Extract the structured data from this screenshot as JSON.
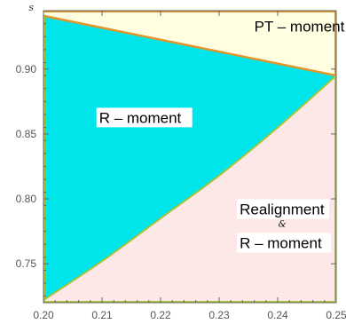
{
  "chart_data": {
    "type": "area",
    "ylabel": "s",
    "xlabel": "",
    "xlim": [
      0.2,
      0.25
    ],
    "ylim": [
      0.72,
      0.945
    ],
    "x_ticks": [
      "0.20",
      "0.21",
      "0.22",
      "0.23",
      "0.24",
      "0.25"
    ],
    "y_ticks": [
      "0.75",
      "0.80",
      "0.85",
      "0.90"
    ],
    "colors": {
      "r_region": "#00e5ea",
      "pt_region": "#fffee0",
      "realign_region": "#fce8e6",
      "boundary": "#e0962c",
      "boundary_green": "#a8c23a",
      "frame": "#666666"
    },
    "boundaries": {
      "pt_boundary": {
        "x": [
          0.2,
          0.25
        ],
        "y": [
          0.941,
          0.895
        ]
      },
      "realignment_boundary": {
        "x": [
          0.2,
          0.21,
          0.22,
          0.23,
          0.24,
          0.25
        ],
        "y": [
          0.722,
          0.752,
          0.785,
          0.818,
          0.855,
          0.895
        ]
      }
    },
    "regions": [
      {
        "name": "PT – moment",
        "label_x": 0.236,
        "label_y": 0.933
      },
      {
        "name": "R – moment",
        "label_x": 0.2095,
        "label_y": 0.862
      },
      {
        "name_line1": "Realignment",
        "name_line2": "&",
        "name_line3": "R – moment",
        "label_x": 0.2335,
        "label_y": 0.76
      }
    ]
  }
}
